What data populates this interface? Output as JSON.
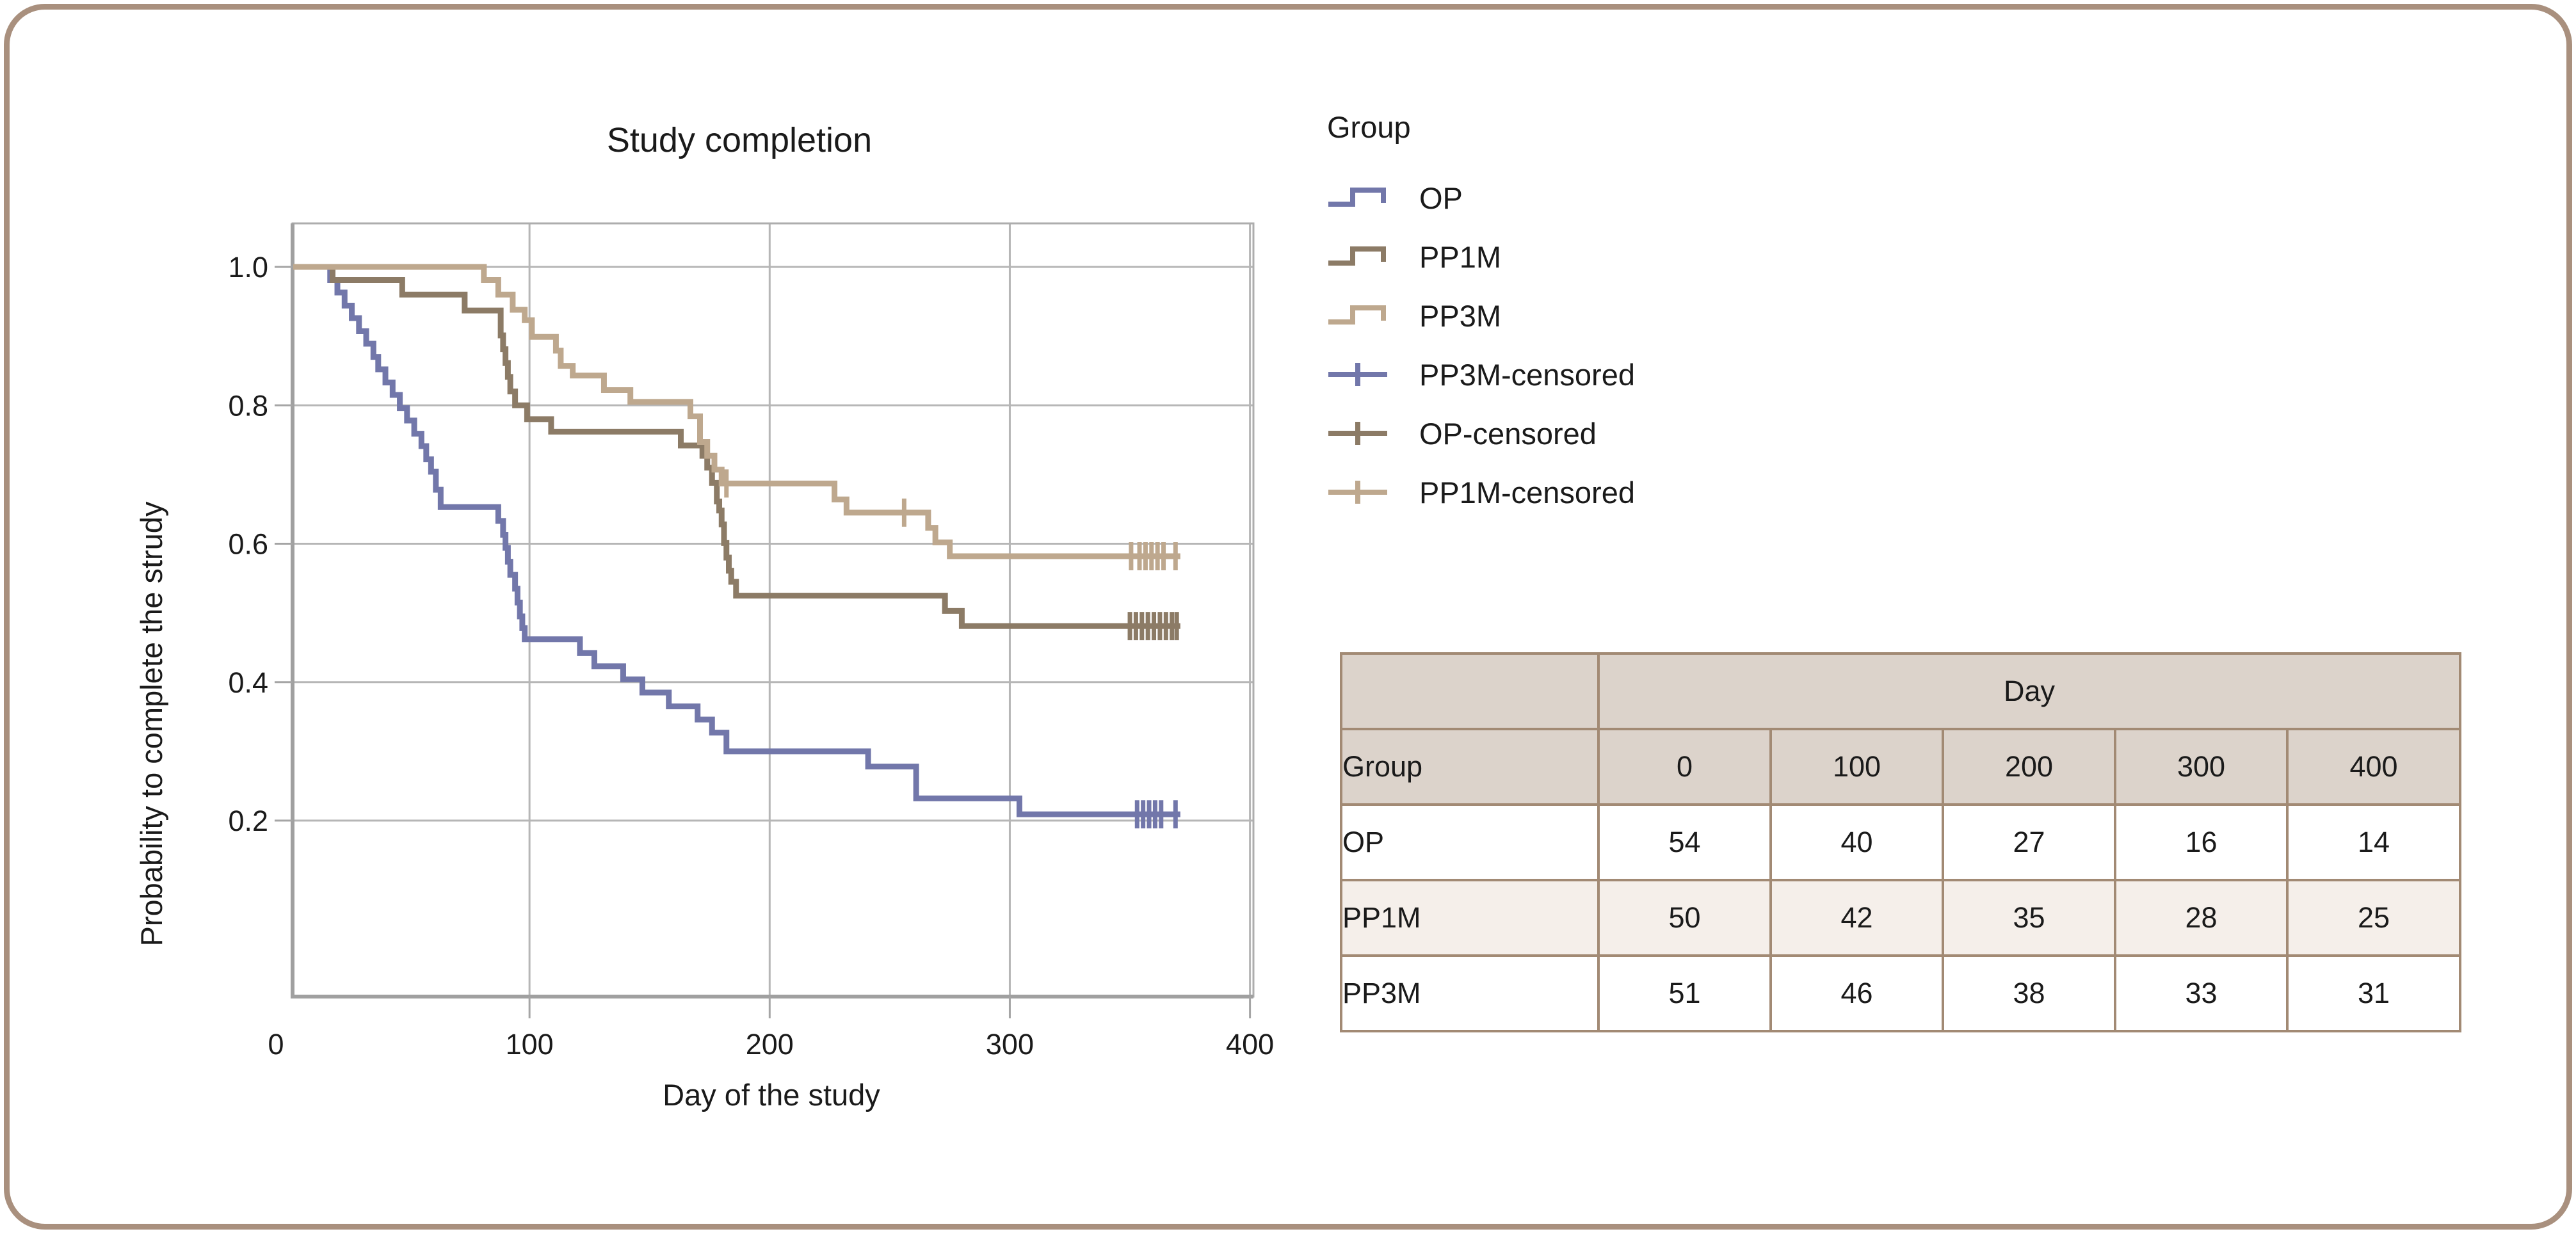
{
  "card": {
    "border_color": "#A9907E"
  },
  "chart": {
    "title": "Study completion",
    "x_axis_label": "Day of the study",
    "y_axis_label": "Probability to complete the strudy",
    "x_tick_labels": [
      "0",
      "100",
      "200",
      "300",
      "400"
    ],
    "y_tick_labels": [
      "1.0",
      "0.8",
      "0.6",
      "0.4",
      "0.2"
    ]
  },
  "legend": {
    "title": "Group",
    "items": [
      {
        "label": "OP",
        "swatch": "step",
        "color": "#7277AA"
      },
      {
        "label": "PP1M",
        "swatch": "step",
        "color": "#8C7B66"
      },
      {
        "label": "PP3M",
        "swatch": "step",
        "color": "#BEA88E"
      },
      {
        "label": "PP3M-censored",
        "swatch": "plus",
        "color": "#7277AA"
      },
      {
        "label": "OP-censored",
        "swatch": "plus",
        "color": "#8C7B66"
      },
      {
        "label": "PP1M-censored",
        "swatch": "plus",
        "color": "#BEA88E"
      }
    ]
  },
  "table": {
    "day_header": "Day",
    "group_header": "Group",
    "day_columns": [
      "0",
      "100",
      "200",
      "300",
      "400"
    ],
    "rows": [
      {
        "group": "OP",
        "values": [
          "54",
          "40",
          "27",
          "16",
          "14"
        ]
      },
      {
        "group": "PP1M",
        "values": [
          "50",
          "42",
          "35",
          "28",
          "25"
        ]
      },
      {
        "group": "PP3M",
        "values": [
          "51",
          "46",
          "38",
          "33",
          "31"
        ]
      }
    ]
  },
  "chart_data": {
    "type": "line",
    "subtype": "kaplan-meier-step",
    "title": "Study completion",
    "xlabel": "Day of the study",
    "ylabel": "Probability to complete the strudy",
    "xlim": [
      0,
      400
    ],
    "ylim": [
      0.0,
      1.05
    ],
    "x_ticks": [
      0,
      100,
      200,
      300,
      400
    ],
    "y_ticks": [
      1.0,
      0.8,
      0.6,
      0.4,
      0.2
    ],
    "grid": true,
    "legend_position": "right",
    "series": [
      {
        "name": "OP",
        "color": "#7277AA",
        "end_day": 371,
        "steps": [
          [
            0,
            1.0
          ],
          [
            17,
            0.981
          ],
          [
            20,
            0.963
          ],
          [
            23,
            0.944
          ],
          [
            26,
            0.926
          ],
          [
            29,
            0.907
          ],
          [
            32,
            0.889
          ],
          [
            35,
            0.87
          ],
          [
            37,
            0.852
          ],
          [
            40,
            0.833
          ],
          [
            43,
            0.815
          ],
          [
            46,
            0.796
          ],
          [
            49,
            0.778
          ],
          [
            52,
            0.759
          ],
          [
            55,
            0.741
          ],
          [
            57,
            0.722
          ],
          [
            59,
            0.704
          ],
          [
            61,
            0.678
          ],
          [
            63,
            0.653
          ],
          [
            87,
            0.633
          ],
          [
            89,
            0.613
          ],
          [
            90,
            0.594
          ],
          [
            91,
            0.574
          ],
          [
            92,
            0.555
          ],
          [
            94,
            0.535
          ],
          [
            95,
            0.515
          ],
          [
            96,
            0.495
          ],
          [
            97,
            0.478
          ],
          [
            98,
            0.462
          ],
          [
            121,
            0.442
          ],
          [
            127,
            0.423
          ],
          [
            139,
            0.404
          ],
          [
            147,
            0.385
          ],
          [
            158,
            0.365
          ],
          [
            170,
            0.346
          ],
          [
            176,
            0.327
          ],
          [
            182,
            0.3
          ],
          [
            241,
            0.278
          ],
          [
            261,
            0.232
          ],
          [
            304,
            0.209
          ]
        ],
        "censor_days": [
          353,
          355.5,
          358,
          360.5,
          363,
          369
        ]
      },
      {
        "name": "PP1M",
        "color": "#8C7B66",
        "end_day": 371,
        "steps": [
          [
            0,
            1.0
          ],
          [
            18,
            0.981
          ],
          [
            47,
            0.96
          ],
          [
            73,
            0.937
          ],
          [
            88,
            0.901
          ],
          [
            89,
            0.881
          ],
          [
            90,
            0.861
          ],
          [
            91,
            0.841
          ],
          [
            92,
            0.82
          ],
          [
            94,
            0.8
          ],
          [
            99,
            0.78
          ],
          [
            109,
            0.762
          ],
          [
            163,
            0.742
          ],
          [
            172,
            0.727
          ],
          [
            174,
            0.71
          ],
          [
            176,
            0.688
          ],
          [
            178,
            0.661
          ],
          [
            179,
            0.648
          ],
          [
            180,
            0.628
          ],
          [
            181,
            0.601
          ],
          [
            182,
            0.58
          ],
          [
            183,
            0.561
          ],
          [
            184,
            0.545
          ],
          [
            186,
            0.525
          ],
          [
            273,
            0.503
          ],
          [
            280,
            0.481
          ]
        ],
        "censor_days": [
          350,
          352.5,
          355,
          357.5,
          360,
          362.5,
          365,
          367.5,
          369.5
        ]
      },
      {
        "name": "PP3M",
        "color": "#BEA88E",
        "end_day": 371,
        "steps": [
          [
            0,
            1.0
          ],
          [
            81,
            0.981
          ],
          [
            87,
            0.96
          ],
          [
            93,
            0.938
          ],
          [
            98,
            0.923
          ],
          [
            101,
            0.899
          ],
          [
            111,
            0.879
          ],
          [
            113,
            0.857
          ],
          [
            118,
            0.843
          ],
          [
            131,
            0.822
          ],
          [
            142,
            0.805
          ],
          [
            167,
            0.784
          ],
          [
            171,
            0.747
          ],
          [
            174,
            0.727
          ],
          [
            177,
            0.707
          ],
          [
            180,
            0.687
          ],
          [
            227,
            0.664
          ],
          [
            232,
            0.645
          ],
          [
            266,
            0.623
          ],
          [
            269,
            0.602
          ],
          [
            275,
            0.582
          ]
        ],
        "censor_days": [
          182,
          256,
          350.5,
          354,
          356.5,
          359,
          361.5,
          364,
          369
        ]
      }
    ],
    "at_risk_table": {
      "day": [
        0,
        100,
        200,
        300,
        400
      ],
      "OP": [
        54,
        40,
        27,
        16,
        14
      ],
      "PP1M": [
        50,
        42,
        35,
        28,
        25
      ],
      "PP3M": [
        51,
        46,
        38,
        33,
        31
      ]
    }
  }
}
